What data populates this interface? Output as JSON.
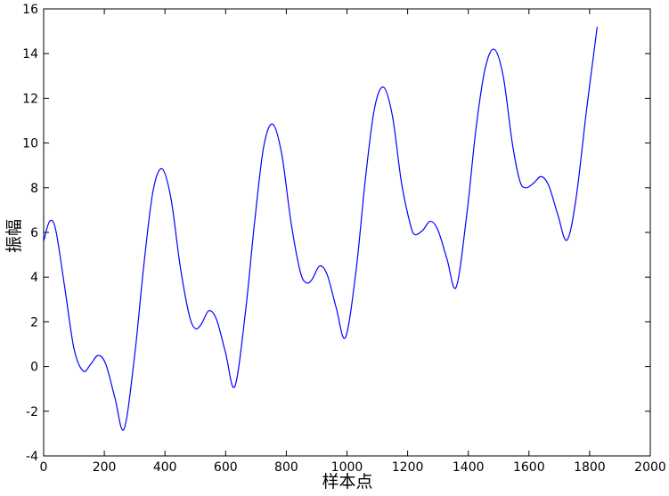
{
  "chart_data": {
    "type": "line",
    "x_label": "样本点",
    "y_label": "振幅",
    "x": [
      0,
      20,
      40,
      70,
      100,
      130,
      155,
      180,
      205,
      235,
      265,
      300,
      330,
      360,
      390,
      420,
      450,
      480,
      500,
      520,
      545,
      570,
      600,
      630,
      665,
      695,
      725,
      755,
      785,
      815,
      845,
      865,
      885,
      910,
      935,
      965,
      995,
      1030,
      1060,
      1090,
      1120,
      1150,
      1180,
      1210,
      1225,
      1250,
      1275,
      1300,
      1330,
      1360,
      1395,
      1425,
      1455,
      1485,
      1515,
      1545,
      1570,
      1590,
      1615,
      1640,
      1665,
      1695,
      1725,
      1755,
      1790,
      1825
    ],
    "series": [
      {
        "color": "#0000ff",
        "values": [
          5.6,
          6.5,
          6.1,
          3.5,
          0.8,
          -0.2,
          0.1,
          0.5,
          0.1,
          -1.4,
          -2.8,
          0.5,
          4.5,
          7.8,
          8.85,
          7.5,
          4.5,
          2.3,
          1.7,
          1.9,
          2.5,
          2.1,
          0.6,
          -0.9,
          2.4,
          6.4,
          9.8,
          10.85,
          9.5,
          6.5,
          4.3,
          3.75,
          3.9,
          4.5,
          4.1,
          2.6,
          1.3,
          4.3,
          8.3,
          11.5,
          12.5,
          11.2,
          8.2,
          6.3,
          5.9,
          6.1,
          6.5,
          6.1,
          4.8,
          3.55,
          6.8,
          10.6,
          13.3,
          14.2,
          13.0,
          10.0,
          8.3,
          8.0,
          8.2,
          8.5,
          8.1,
          6.8,
          5.65,
          7.5,
          11.5,
          15.2
        ]
      }
    ],
    "xlim": [
      0,
      2000
    ],
    "ylim": [
      -4,
      16
    ],
    "xticks": [
      0,
      200,
      400,
      600,
      800,
      1000,
      1200,
      1400,
      1600,
      1800,
      2000
    ],
    "yticks": [
      -4,
      -2,
      0,
      2,
      4,
      6,
      8,
      10,
      12,
      14,
      16
    ]
  }
}
